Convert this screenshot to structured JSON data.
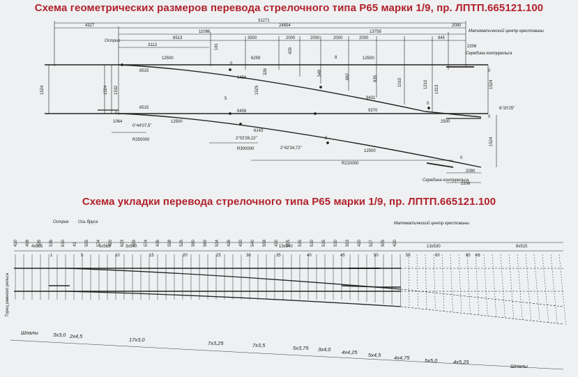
{
  "titles": {
    "geometry": "Схема геометрических размеров перевода стрелочного типа Р65 марки 1/9, пр. ЛПТП.665121.100",
    "layout": "Схема укладки перевода стрелочного типа Р65 марки 1/9, пр. ЛПТП.665121.100"
  },
  "geometry": {
    "dims_top": [
      "31271",
      "4327",
      "24854",
      "2090",
      "11086",
      "13758",
      "6513",
      "3500",
      "2000",
      "2000",
      "2000",
      "2000",
      "945",
      "3113",
      "12500",
      "6259",
      "12500"
    ],
    "dims_misc": [
      "181",
      "429",
      "8",
      "548",
      "662",
      "835",
      "1010",
      "1210",
      "1313",
      "326",
      "1525",
      "1524",
      "1532",
      "1524",
      "1524",
      "1524",
      "5",
      "8",
      "9431",
      "9370",
      "2500",
      "6515",
      "6515",
      "6456",
      "6456",
      "6143",
      "1064",
      "12500",
      "12500",
      "R210000",
      "2090",
      "2206",
      "2206",
      "0",
      "0",
      "0",
      "0",
      "0",
      "0"
    ],
    "angles": [
      "0°44'07,5\"",
      "2°02'26,22\"",
      "2°42'34,72\"",
      "6°20'25\""
    ],
    "radii": [
      "R250000",
      "R300000"
    ],
    "labels": {
      "point": "Острие",
      "math_center": "Математический центр крестовины",
      "mid_frog": "Середина контррельса",
      "mid_frog_bottom": "Середина контррельса"
    }
  },
  "layout": {
    "labels": {
      "point": "Острие",
      "sleeper_axis": "Ось бруса",
      "math_center": "Математический центр крестовины",
      "rail_end": "Торец рамного рельса"
    },
    "top_dims": [
      "4x505",
      "5x565",
      "3x570",
      "13x540",
      "13x530",
      "8x515"
    ],
    "sleeper_values": [
      "420",
      "498",
      "535",
      "536",
      "610",
      "41",
      "555",
      "574",
      "420",
      "623",
      "619",
      "574",
      "436",
      "598",
      "525",
      "580",
      "569",
      "534",
      "426",
      "420",
      "540",
      "558",
      "420",
      "505",
      "515",
      "510",
      "515",
      "510",
      "503",
      "420",
      "527",
      "505",
      "420"
    ],
    "index_numbers": [
      "1",
      "5",
      "10",
      "15",
      "20",
      "25",
      "30",
      "35",
      "40",
      "45",
      "50",
      "55",
      "60",
      "65",
      "66"
    ],
    "groups": [
      "Шпалы",
      "3х3,0",
      "2х4,5",
      "17х3,0",
      "7х3,25",
      "7х3,5",
      "5х3,75",
      "3х4,0",
      "4х4,25",
      "5х4,5",
      "4х4,75",
      "5х5,0",
      "4х5,25",
      "Шпалы"
    ]
  }
}
